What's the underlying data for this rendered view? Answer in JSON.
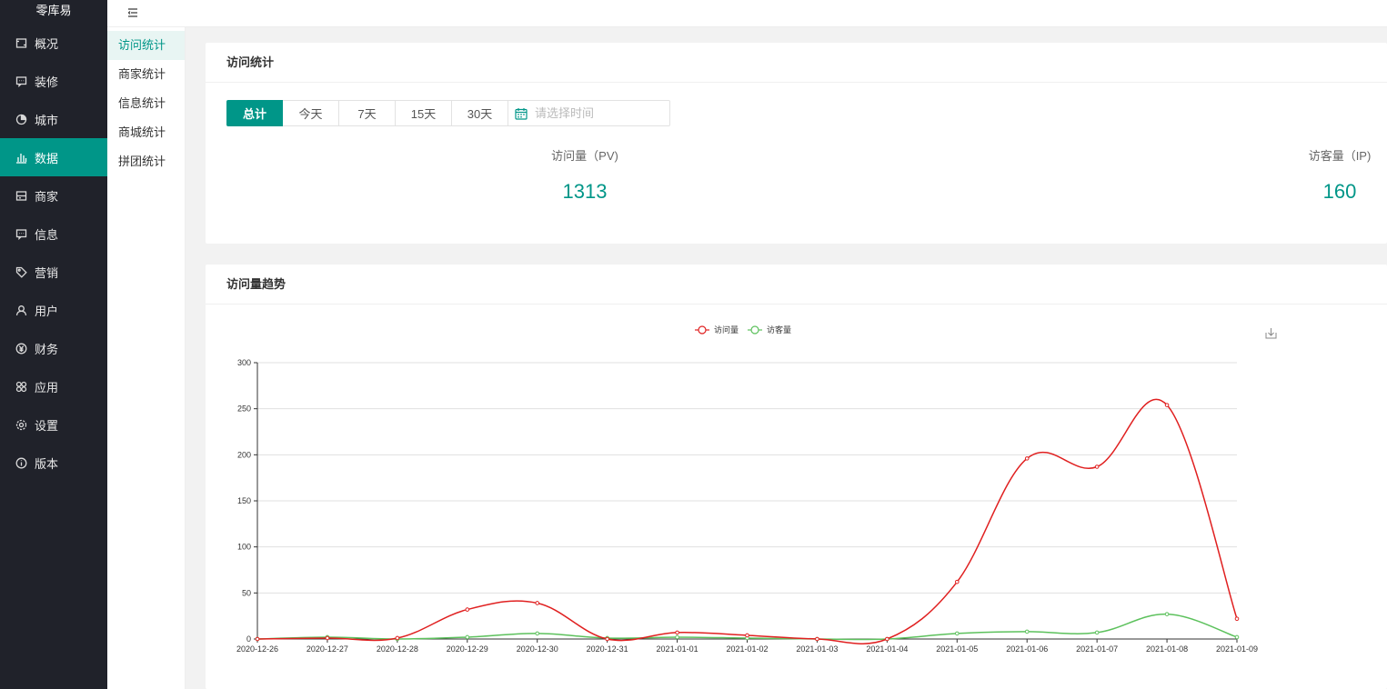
{
  "app": {
    "logo_text": "零库易"
  },
  "sidebar": {
    "items": [
      {
        "label": "概况",
        "icon": "dashboard-icon"
      },
      {
        "label": "装修",
        "icon": "message-icon"
      },
      {
        "label": "城市",
        "icon": "target-icon"
      },
      {
        "label": "数据",
        "icon": "bar-chart-icon",
        "active": true
      },
      {
        "label": "商家",
        "icon": "panel-icon"
      },
      {
        "label": "信息",
        "icon": "chat-icon"
      },
      {
        "label": "营销",
        "icon": "tag-icon"
      },
      {
        "label": "用户",
        "icon": "user-icon"
      },
      {
        "label": "财务",
        "icon": "yen-icon"
      },
      {
        "label": "应用",
        "icon": "apps-icon"
      },
      {
        "label": "设置",
        "icon": "gear-icon"
      },
      {
        "label": "版本",
        "icon": "info-icon"
      }
    ]
  },
  "subnav": {
    "items": [
      {
        "label": "访问统计",
        "active": true
      },
      {
        "label": "商家统计"
      },
      {
        "label": "信息统计"
      },
      {
        "label": "商城统计"
      },
      {
        "label": "拼团统计"
      }
    ]
  },
  "stats_card": {
    "title": "访问统计",
    "filters": [
      "总计",
      "今天",
      "7天",
      "15天",
      "30天"
    ],
    "active_filter": "总计",
    "date_placeholder": "请选择时间",
    "pv_label": "访问量（PV)",
    "pv_value": "1313",
    "ip_label": "访客量（IP)",
    "ip_value": "160"
  },
  "trend_card": {
    "title": "访问量趋势"
  },
  "colors": {
    "accent": "#009688",
    "sidebar_bg": "#20222a",
    "pv_line": "#e02020",
    "ip_line": "#5cc15c"
  },
  "chart_data": {
    "type": "line",
    "x": [
      "2020-12-26",
      "2020-12-27",
      "2020-12-28",
      "2020-12-29",
      "2020-12-30",
      "2020-12-31",
      "2021-01-01",
      "2021-01-02",
      "2021-01-03",
      "2021-01-04",
      "2021-01-05",
      "2021-01-06",
      "2021-01-07",
      "2021-01-08",
      "2021-01-09"
    ],
    "series": [
      {
        "name": "访问量",
        "color": "#e02020",
        "values": [
          0,
          1,
          1,
          32,
          39,
          0,
          7,
          4,
          0,
          0,
          62,
          196,
          187,
          254,
          22
        ]
      },
      {
        "name": "访客量",
        "color": "#5cc15c",
        "values": [
          0,
          2,
          0,
          2,
          6,
          1,
          2,
          1,
          0,
          0,
          6,
          8,
          7,
          27,
          2
        ]
      }
    ],
    "yticks": [
      "0",
      "50",
      "100",
      "150",
      "200",
      "250",
      "300"
    ],
    "ylim": [
      0,
      300
    ],
    "grid": true,
    "legend": "top-center"
  }
}
